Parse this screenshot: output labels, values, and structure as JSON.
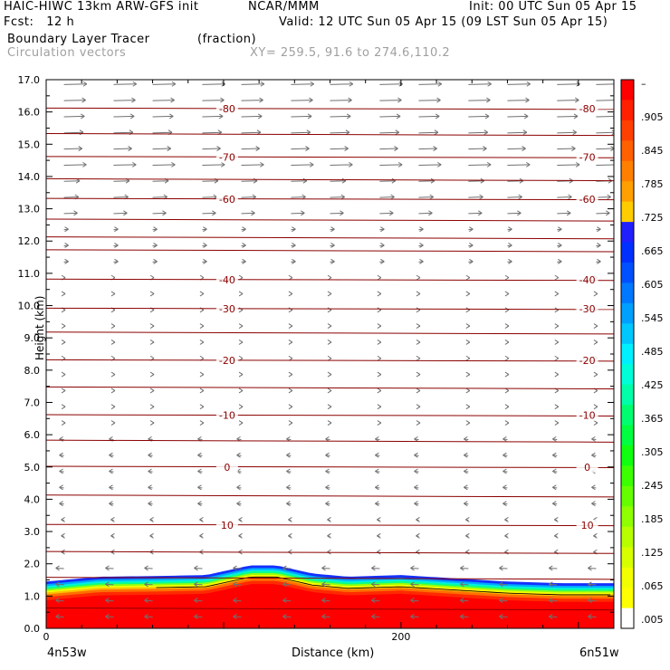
{
  "header": {
    "model": "HAIC-HIWC 13km ARW-GFS init",
    "org": "NCAR/MMM",
    "init": "Init: 00 UTC Sun 05 Apr 15",
    "fcst": "Fcst:   12 h",
    "valid": "Valid: 12 UTC Sun 05 Apr 15 (09 LST Sun 05 Apr 15)",
    "field": "Boundary Layer Tracer",
    "units": "(fraction)",
    "vectors": "Circulation vectors",
    "xy": "XY= 259.5, 91.6 to 274.6,110.2"
  },
  "chart_data": {
    "type": "heatmap",
    "title": "Boundary Layer Tracer",
    "xlabel": "Distance (km)",
    "ylabel": "Height (km)",
    "xlim": [
      0,
      320
    ],
    "ylim": [
      0,
      17.0
    ],
    "x_ticks": [
      0,
      200
    ],
    "x_tick_labels": [
      "0",
      "200"
    ],
    "x_end_labels": [
      "4n53w",
      "6n51w"
    ],
    "y_ticks": [
      0.0,
      1.0,
      2.0,
      3.0,
      4.0,
      5.0,
      6.0,
      7.0,
      8.0,
      9.0,
      10.0,
      11.0,
      12.0,
      13.0,
      14.0,
      15.0,
      16.0,
      17.0
    ],
    "y_tick_labels": [
      "0.0",
      "1.0",
      "2.0",
      "3.0",
      "4.0",
      "5.0",
      "6.0",
      "7.0",
      "8.0",
      "9.0",
      "10.0",
      "11.0",
      "12.0",
      "13.0",
      "14.0",
      "15.0",
      "16.0",
      "17.0"
    ],
    "colorbar": {
      "labels": [
        ".005",
        ".065",
        ".125",
        ".185",
        ".245",
        ".305",
        ".365",
        ".425",
        ".485",
        ".545",
        ".605",
        ".665",
        ".725",
        ".785",
        ".845",
        ".905",
        "–"
      ],
      "colors": [
        "#ffffff",
        "#ffff00",
        "#f2ff00",
        "#d8ff00",
        "#b8ff00",
        "#90ff00",
        "#66ff00",
        "#3cff00",
        "#10ff10",
        "#00ff40",
        "#00ff70",
        "#00ffa8",
        "#00ffd8",
        "#00f0ff",
        "#00c8ff",
        "#00a0ff",
        "#0078ff",
        "#0050ff",
        "#0030ff",
        "#2020ff",
        "#ffcc00",
        "#ffa000",
        "#ff8000",
        "#ff6000",
        "#ff4000",
        "#ff2000",
        "#ff0000"
      ]
    },
    "boundary_layer_top_km": {
      "x": [
        0,
        30,
        60,
        90,
        115,
        130,
        150,
        170,
        200,
        230,
        260,
        290,
        320
      ],
      "y": [
        1.45,
        1.6,
        1.62,
        1.65,
        1.95,
        1.95,
        1.7,
        1.6,
        1.65,
        1.55,
        1.45,
        1.4,
        1.4
      ]
    },
    "isotherms": [
      {
        "label": "-80",
        "y": 16.1
      },
      {
        "label": "-70",
        "y": 14.6
      },
      {
        "label": "-60",
        "y": 13.3
      },
      {
        "label": "-40",
        "y": 10.8
      },
      {
        "label": "-30",
        "y": 9.9
      },
      {
        "label": "-20",
        "y": 8.3
      },
      {
        "label": "-10",
        "y": 6.6
      },
      {
        "label": "0",
        "y": 5.0
      },
      {
        "label": "10",
        "y": 3.2
      }
    ]
  }
}
